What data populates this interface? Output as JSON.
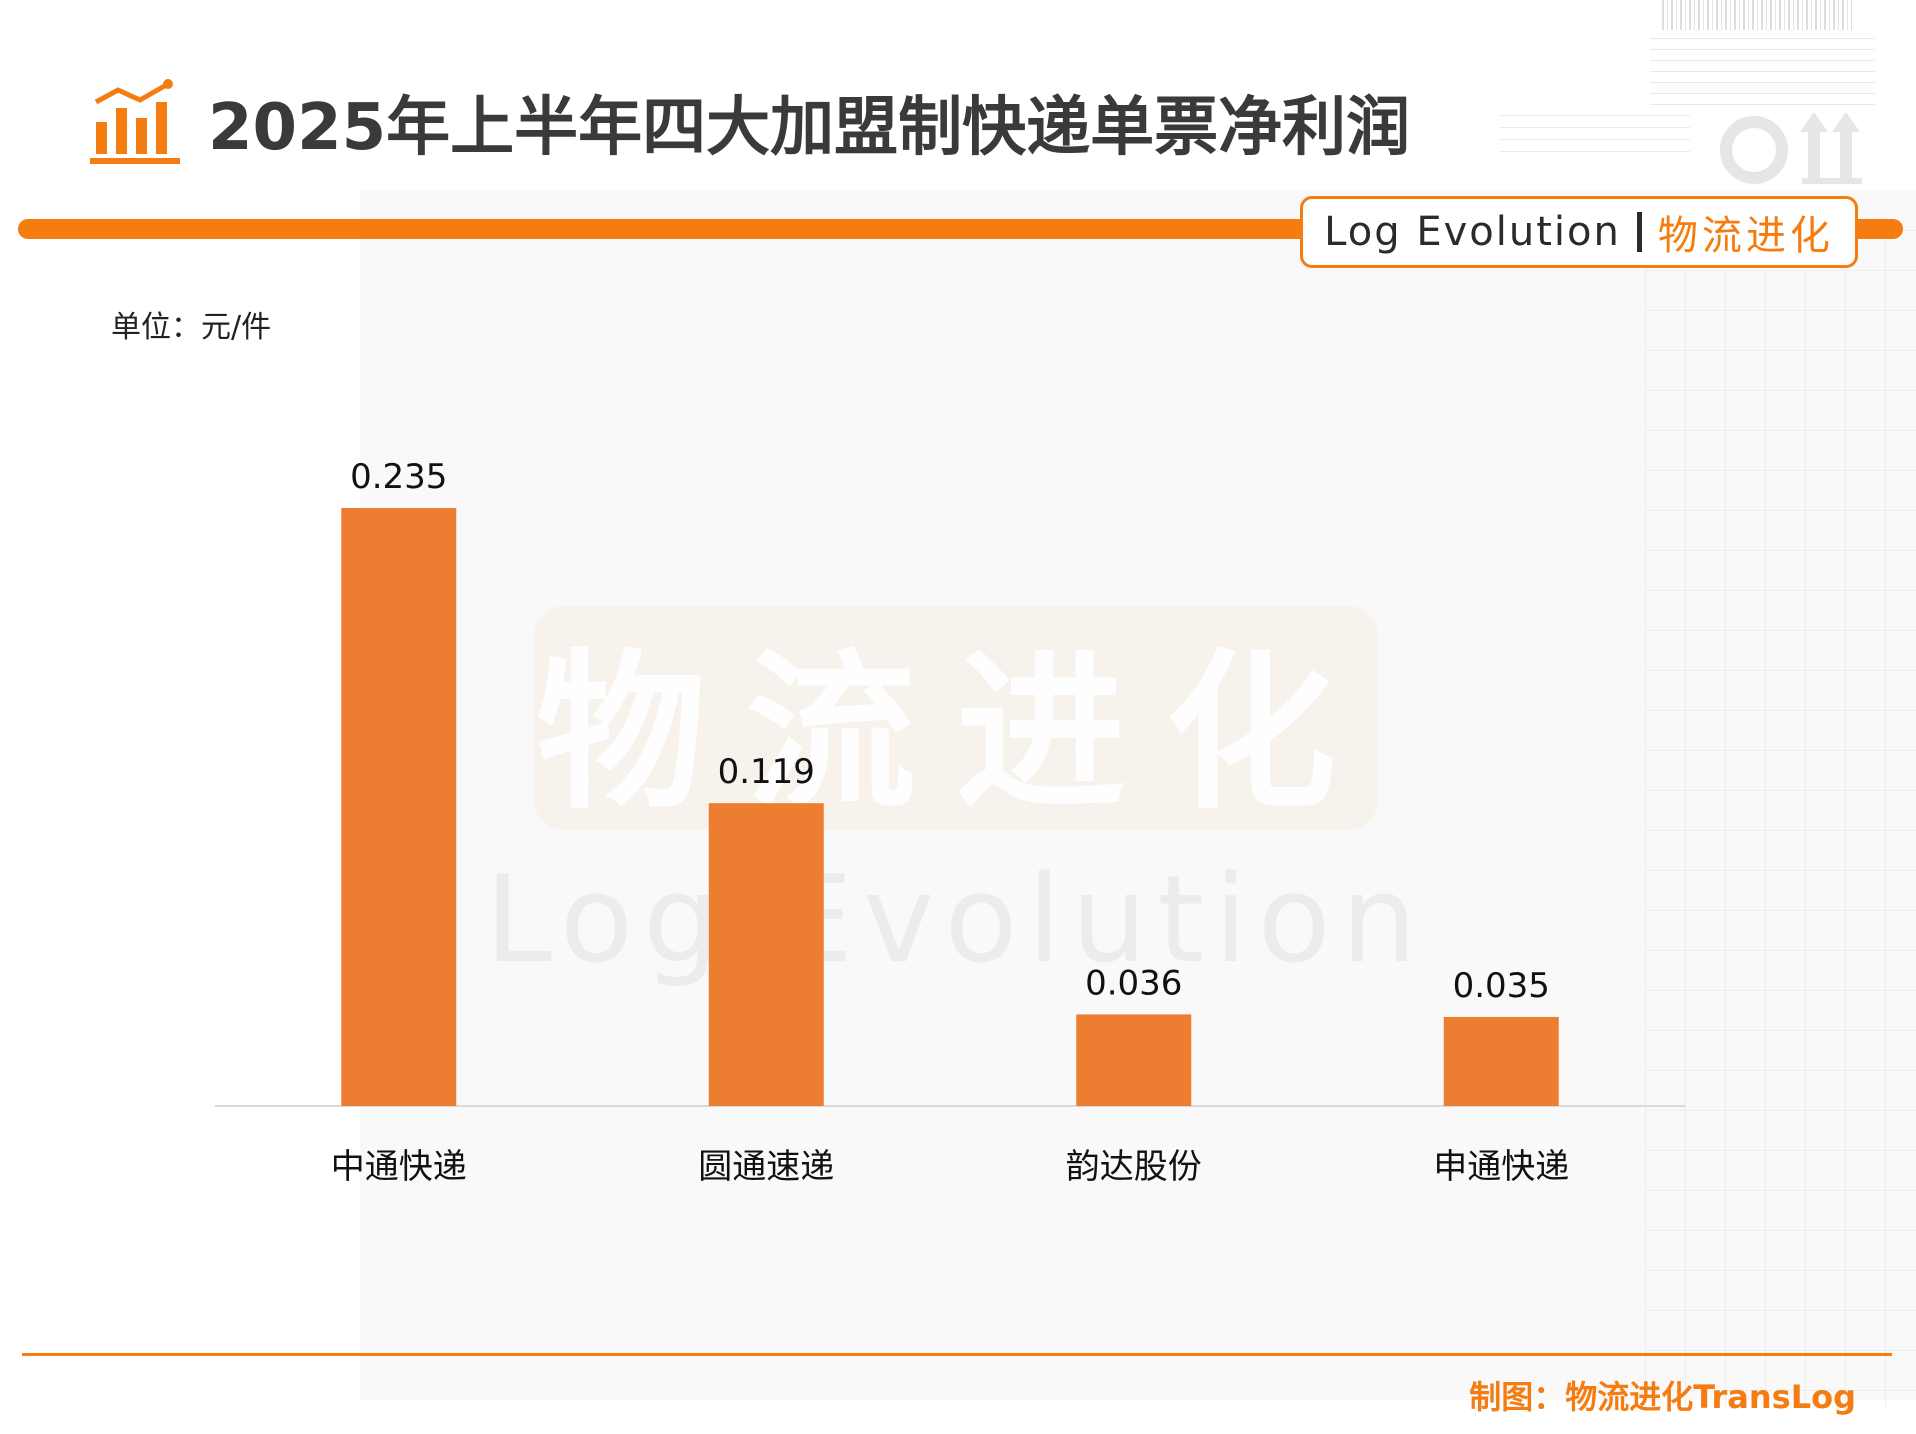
{
  "header": {
    "title": "2025年上半年四大加盟制快递单票净利润",
    "brand_en": "Log Evolution",
    "brand_cn": "物流进化"
  },
  "unit_label": "单位：元/件",
  "watermark": {
    "cn": "物流进化",
    "en": "Log Evolution"
  },
  "colors": {
    "accent": "#f57c10",
    "bar": "#ed7d31",
    "baseline": "#d9d9d9"
  },
  "chart_data": {
    "type": "bar",
    "title": "2025年上半年四大加盟制快递单票净利润",
    "categories": [
      "中通快递",
      "圆通速递",
      "韵达股份",
      "申通快递"
    ],
    "values": [
      0.235,
      0.119,
      0.036,
      0.035
    ],
    "data_labels": [
      "0.235",
      "0.119",
      "0.036",
      "0.035"
    ],
    "xlabel": "",
    "ylabel": "单位：元/件",
    "ylim": [
      0,
      0.235
    ],
    "grid": false,
    "legend": "none"
  },
  "footer": {
    "credit": "制图：物流进化TransLog"
  }
}
